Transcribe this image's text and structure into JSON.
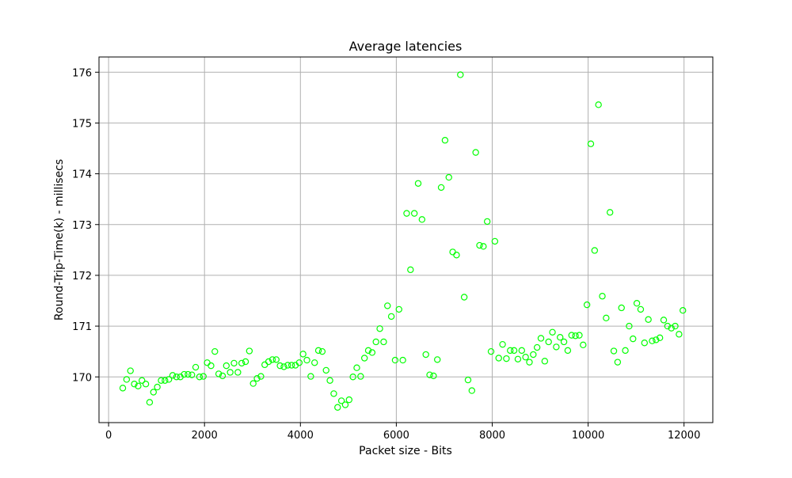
{
  "chart_data": {
    "type": "scatter",
    "title": "Average latencies",
    "xlabel": "Packet size - Bits",
    "ylabel": "Round-Trip-Time(k) - millisecs",
    "xlim": [
      -200,
      12600
    ],
    "ylim": [
      169.1,
      176.3
    ],
    "xticks": [
      0,
      2000,
      4000,
      6000,
      8000,
      10000,
      12000
    ],
    "yticks": [
      170,
      171,
      172,
      173,
      174,
      175,
      176
    ],
    "grid": true,
    "marker_color": "#00ff00",
    "marker": "hollow-circle",
    "series": [
      {
        "points": [
          [
            296,
            169.78
          ],
          [
            376,
            169.95
          ],
          [
            456,
            170.12
          ],
          [
            536,
            169.86
          ],
          [
            616,
            169.82
          ],
          [
            696,
            169.93
          ],
          [
            776,
            169.86
          ],
          [
            856,
            169.5
          ],
          [
            936,
            169.7
          ],
          [
            1016,
            169.8
          ],
          [
            1096,
            169.93
          ],
          [
            1176,
            169.93
          ],
          [
            1256,
            169.95
          ],
          [
            1336,
            170.03
          ],
          [
            1416,
            170.0
          ],
          [
            1496,
            170.0
          ],
          [
            1576,
            170.05
          ],
          [
            1656,
            170.05
          ],
          [
            1736,
            170.04
          ],
          [
            1816,
            170.19
          ],
          [
            1896,
            170.0
          ],
          [
            1976,
            170.01
          ],
          [
            2056,
            170.28
          ],
          [
            2136,
            170.22
          ],
          [
            2216,
            170.5
          ],
          [
            2296,
            170.06
          ],
          [
            2376,
            170.02
          ],
          [
            2456,
            170.22
          ],
          [
            2536,
            170.09
          ],
          [
            2616,
            170.27
          ],
          [
            2696,
            170.09
          ],
          [
            2776,
            170.27
          ],
          [
            2856,
            170.3
          ],
          [
            2936,
            170.51
          ],
          [
            3016,
            169.87
          ],
          [
            3096,
            169.97
          ],
          [
            3176,
            170.01
          ],
          [
            3256,
            170.24
          ],
          [
            3336,
            170.3
          ],
          [
            3416,
            170.34
          ],
          [
            3496,
            170.34
          ],
          [
            3576,
            170.22
          ],
          [
            3656,
            170.2
          ],
          [
            3736,
            170.23
          ],
          [
            3816,
            170.23
          ],
          [
            3896,
            170.23
          ],
          [
            3976,
            170.28
          ],
          [
            4056,
            170.45
          ],
          [
            4136,
            170.33
          ],
          [
            4216,
            170.01
          ],
          [
            4296,
            170.28
          ],
          [
            4376,
            170.52
          ],
          [
            4456,
            170.5
          ],
          [
            4536,
            170.13
          ],
          [
            4616,
            169.93
          ],
          [
            4696,
            169.67
          ],
          [
            4776,
            169.4
          ],
          [
            4856,
            169.53
          ],
          [
            4936,
            169.45
          ],
          [
            5016,
            169.55
          ],
          [
            5096,
            170.0
          ],
          [
            5176,
            170.18
          ],
          [
            5256,
            170.01
          ],
          [
            5336,
            170.37
          ],
          [
            5416,
            170.52
          ],
          [
            5496,
            170.48
          ],
          [
            5576,
            170.69
          ],
          [
            5656,
            170.95
          ],
          [
            5736,
            170.69
          ],
          [
            5816,
            171.4
          ],
          [
            5896,
            171.19
          ],
          [
            5976,
            170.33
          ],
          [
            6056,
            171.33
          ],
          [
            6136,
            170.33
          ],
          [
            6216,
            173.22
          ],
          [
            6296,
            172.11
          ],
          [
            6376,
            173.22
          ],
          [
            6456,
            173.81
          ],
          [
            6536,
            173.1
          ],
          [
            6616,
            170.44
          ],
          [
            6696,
            170.04
          ],
          [
            6776,
            170.02
          ],
          [
            6856,
            170.34
          ],
          [
            6936,
            173.73
          ],
          [
            7016,
            174.66
          ],
          [
            7096,
            173.93
          ],
          [
            7176,
            172.46
          ],
          [
            7256,
            172.4
          ],
          [
            7336,
            175.95
          ],
          [
            7416,
            171.57
          ],
          [
            7496,
            169.94
          ],
          [
            7576,
            169.73
          ],
          [
            7656,
            174.42
          ],
          [
            7736,
            172.59
          ],
          [
            7816,
            172.57
          ],
          [
            7896,
            173.06
          ],
          [
            7976,
            170.5
          ],
          [
            8056,
            172.67
          ],
          [
            8136,
            170.37
          ],
          [
            8216,
            170.64
          ],
          [
            8296,
            170.36
          ],
          [
            8376,
            170.52
          ],
          [
            8456,
            170.52
          ],
          [
            8536,
            170.35
          ],
          [
            8616,
            170.52
          ],
          [
            8696,
            170.39
          ],
          [
            8776,
            170.29
          ],
          [
            8856,
            170.44
          ],
          [
            8936,
            170.58
          ],
          [
            9016,
            170.76
          ],
          [
            9096,
            170.31
          ],
          [
            9176,
            170.69
          ],
          [
            9256,
            170.88
          ],
          [
            9336,
            170.59
          ],
          [
            9416,
            170.78
          ],
          [
            9496,
            170.69
          ],
          [
            9576,
            170.52
          ],
          [
            9656,
            170.82
          ],
          [
            9736,
            170.81
          ],
          [
            9816,
            170.82
          ],
          [
            9896,
            170.63
          ],
          [
            9976,
            171.42
          ],
          [
            10056,
            174.59
          ],
          [
            10136,
            172.49
          ],
          [
            10216,
            175.36
          ],
          [
            10296,
            171.59
          ],
          [
            10376,
            171.16
          ],
          [
            10456,
            173.24
          ],
          [
            10536,
            170.51
          ],
          [
            10616,
            170.29
          ],
          [
            10696,
            171.36
          ],
          [
            10776,
            170.52
          ],
          [
            10856,
            171.0
          ],
          [
            10936,
            170.75
          ],
          [
            11016,
            171.45
          ],
          [
            11096,
            171.33
          ],
          [
            11176,
            170.67
          ],
          [
            11256,
            171.13
          ],
          [
            11336,
            170.71
          ],
          [
            11416,
            170.73
          ],
          [
            11496,
            170.77
          ],
          [
            11576,
            171.12
          ],
          [
            11656,
            171.0
          ],
          [
            11736,
            170.96
          ],
          [
            11816,
            171.0
          ],
          [
            11896,
            170.84
          ],
          [
            11976,
            171.31
          ]
        ]
      }
    ]
  }
}
